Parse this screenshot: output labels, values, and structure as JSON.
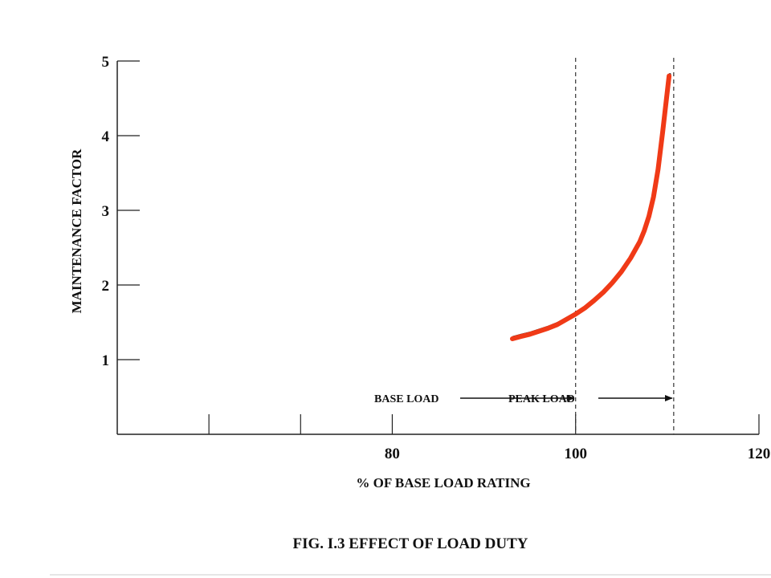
{
  "chart_data": {
    "type": "line",
    "title": "",
    "xlabel": "% OF BASE LOAD RATING",
    "ylabel": "MAINTENANCE FACTOR",
    "xlim": [
      50,
      120
    ],
    "ylim": [
      0,
      5
    ],
    "x_ticks": [
      60,
      70,
      80,
      100,
      120
    ],
    "x_tick_labels": [
      "",
      "",
      "80",
      "100",
      "120"
    ],
    "y_ticks": [
      1,
      2,
      3,
      4,
      5
    ],
    "y_tick_labels": [
      "1",
      "2",
      "3",
      "4",
      "5"
    ],
    "grid": false,
    "reference_lines": [
      {
        "axis": "x",
        "value": 100,
        "style": "dashed"
      },
      {
        "axis": "x",
        "value": 110.7,
        "style": "dashed"
      }
    ],
    "regions": [
      {
        "label": "BASE LOAD",
        "arrow_to": 100
      },
      {
        "label": "PEAK LOAD",
        "arrow_to": 110.7
      }
    ],
    "series": [
      {
        "color": "#f03a17",
        "x": [
          93.1,
          94,
          95,
          96,
          97,
          98,
          99,
          100,
          101,
          102,
          103,
          104,
          105,
          106,
          107,
          107.5,
          108,
          108.5,
          109,
          109.5,
          110.2
        ],
        "y": [
          1.28,
          1.31,
          1.34,
          1.38,
          1.42,
          1.47,
          1.54,
          1.61,
          1.69,
          1.79,
          1.9,
          2.03,
          2.18,
          2.36,
          2.58,
          2.73,
          2.92,
          3.18,
          3.55,
          4.05,
          4.8
        ]
      }
    ]
  },
  "caption": "FIG. I.3  EFFECT OF LOAD DUTY"
}
